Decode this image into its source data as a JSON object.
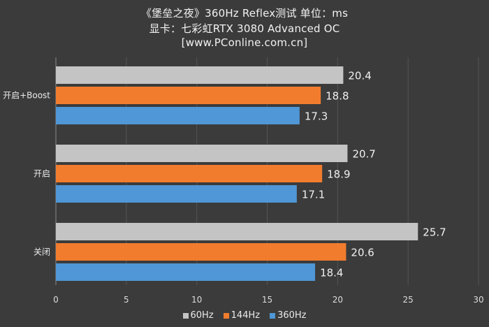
{
  "header": {
    "title_line1": "《堡垒之夜》360Hz Reflex测试 单位：ms",
    "title_line2": "显卡：七彩虹RTX 3080 Advanced OC",
    "title_line3": "[www.PConline.com.cn]"
  },
  "chart_data": {
    "type": "bar",
    "orientation": "horizontal",
    "categories": [
      "开启+Boost",
      "开启",
      "关闭"
    ],
    "series": [
      {
        "name": "60Hz",
        "color": "#c4c4c4",
        "values": [
          20.4,
          20.7,
          25.7
        ]
      },
      {
        "name": "144Hz",
        "color": "#f27c2e",
        "values": [
          18.8,
          18.9,
          20.6
        ]
      },
      {
        "name": "360Hz",
        "color": "#4f97d6",
        "values": [
          17.3,
          17.1,
          18.4
        ]
      }
    ],
    "xlim": [
      0,
      30
    ],
    "xticks": [
      "0",
      "5",
      "10",
      "15",
      "20",
      "25",
      "30"
    ],
    "grid": true,
    "legend_position": "bottom"
  }
}
